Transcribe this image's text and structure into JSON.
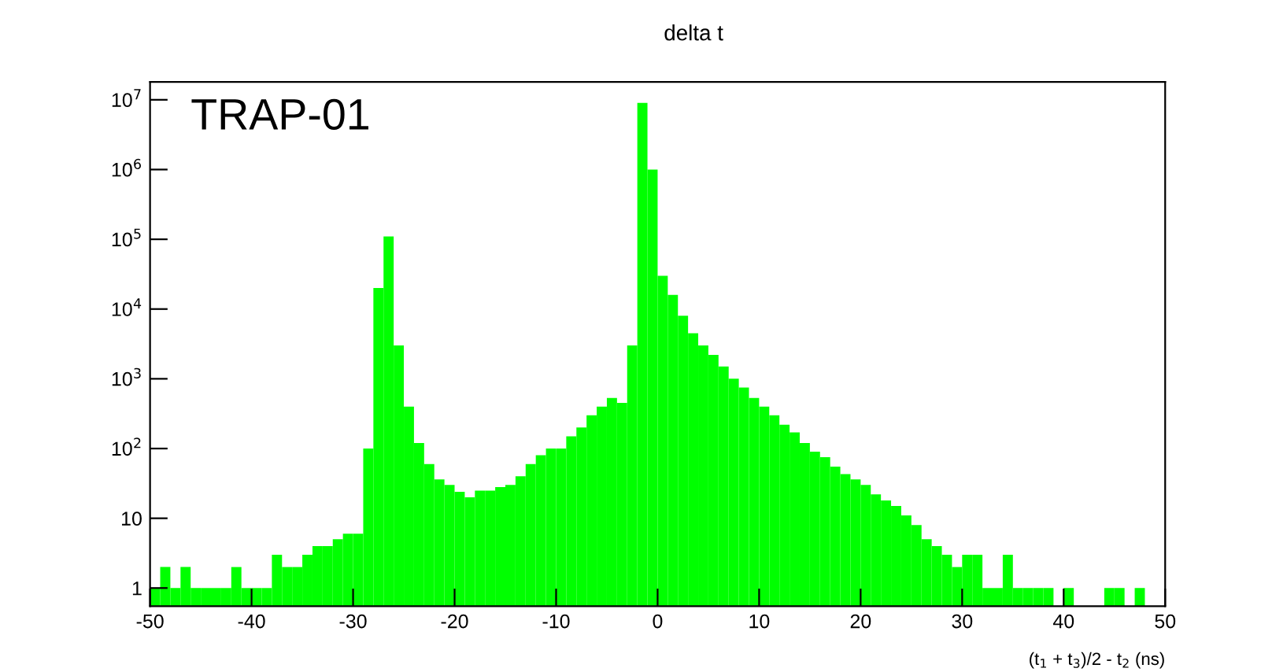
{
  "chart_data": {
    "type": "histogram",
    "title": "delta t",
    "xlabel": "(t$_{1}$ + t$_{3}$)/2 - t$_{2}$ (ns)",
    "annotations": [
      "TRAP-01"
    ],
    "color": "#00ff00",
    "bins": [
      -50,
      -49,
      -48,
      -47,
      -46,
      -45,
      -44,
      -43,
      -42,
      -41,
      -40,
      -39,
      -38,
      -37,
      -36,
      -35,
      -34,
      -33,
      -32,
      -31,
      -30,
      -29,
      -28,
      -27,
      -26,
      -25,
      -24,
      -23,
      -22,
      -21,
      -20,
      -19,
      -18,
      -17,
      -16,
      -15,
      -14,
      -13,
      -12,
      -11,
      -10,
      -9,
      -8,
      -7,
      -6,
      -5,
      -4,
      -3,
      -2,
      -1,
      0,
      1,
      2,
      3,
      4,
      5,
      6,
      7,
      8,
      9,
      10,
      11,
      12,
      13,
      14,
      15,
      16,
      17,
      18,
      19,
      20,
      21,
      22,
      23,
      24,
      25,
      26,
      27,
      28,
      29,
      30,
      31,
      32,
      33,
      34,
      35,
      36,
      37,
      38,
      39,
      40,
      41,
      42,
      43,
      44,
      45,
      46,
      47,
      48,
      49,
      50
    ],
    "values": [
      1,
      2,
      1,
      2,
      1,
      1,
      1,
      1,
      2,
      1,
      1,
      1,
      3,
      2,
      2,
      3,
      4,
      4,
      5,
      6,
      6,
      100,
      20000,
      110000,
      3000,
      400,
      120,
      60,
      36,
      30,
      24,
      20,
      25,
      25,
      28,
      30,
      40,
      60,
      80,
      100,
      100,
      150,
      200,
      300,
      400,
      530,
      450,
      3000,
      9000000,
      1000000,
      30000,
      16000,
      8000,
      4500,
      3000,
      2200,
      1500,
      1000,
      750,
      530,
      400,
      300,
      220,
      170,
      120,
      90,
      75,
      55,
      43,
      36,
      30,
      22,
      18,
      15,
      11,
      8,
      5,
      4,
      3,
      2,
      3,
      3,
      1,
      1,
      3,
      1,
      1,
      1,
      1,
      null,
      1,
      null,
      null,
      null,
      1,
      1,
      null,
      1,
      null,
      null
    ],
    "log": "y",
    "xlim": [
      -50,
      50
    ],
    "xticks": [
      -50,
      -40,
      -30,
      -20,
      -10,
      0,
      10,
      20,
      30,
      40,
      50
    ],
    "ylim": [
      0.55,
      18000000
    ],
    "yticks": [
      1,
      10,
      {
        "value": 100,
        "label": "10$^{2}$"
      },
      {
        "value": 1000,
        "label": "10$^{3}$"
      },
      {
        "value": 10000,
        "label": "10$^{4}$"
      },
      {
        "value": 100000,
        "label": "10$^{5}$"
      },
      {
        "value": 1000000,
        "label": "10$^{6}$"
      },
      {
        "value": 10000000,
        "label": "10$^{7}$"
      }
    ],
    "grid": false
  }
}
